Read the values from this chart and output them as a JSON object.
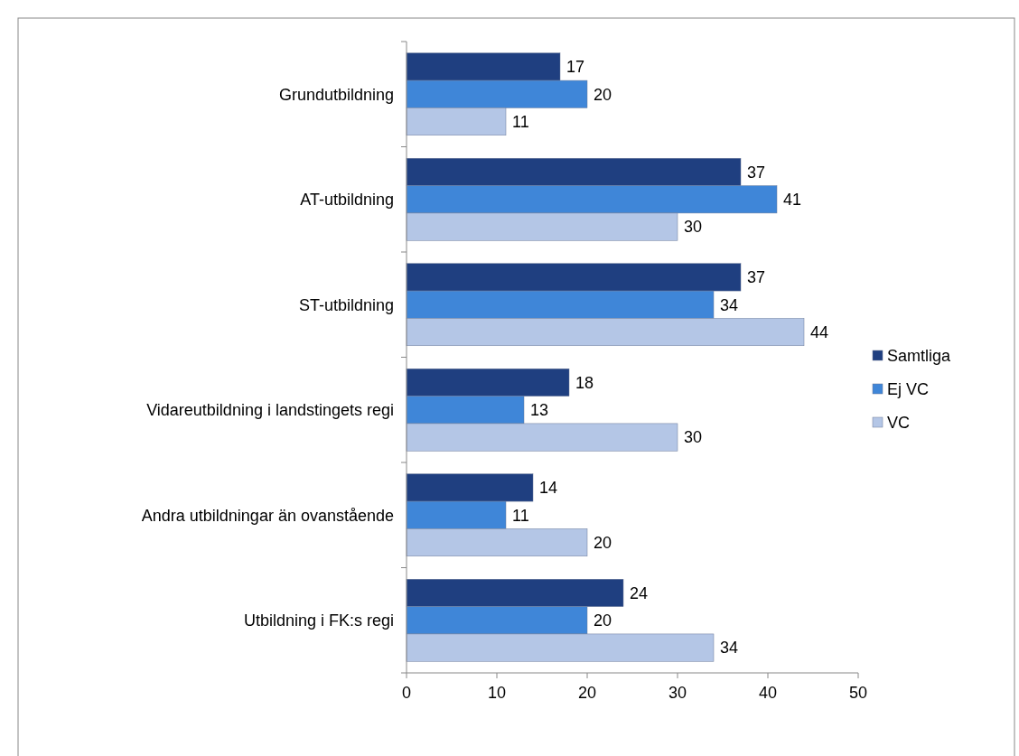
{
  "chart_data": {
    "type": "bar",
    "orientation": "horizontal",
    "categories": [
      "Grundutbildning",
      "AT-utbildning",
      "ST-utbildning",
      "Vidareutbildning i landstingets regi",
      "Andra utbildningar än ovanstående",
      "Utbildning i FK:s regi"
    ],
    "series": [
      {
        "name": "Samtliga",
        "color": "#1f3f80",
        "values": [
          17,
          37,
          37,
          18,
          14,
          24
        ]
      },
      {
        "name": "Ej VC",
        "color": "#3f86d8",
        "values": [
          20,
          41,
          34,
          13,
          11,
          20
        ]
      },
      {
        "name": "VC",
        "color": "#b4c6e6",
        "values": [
          11,
          30,
          44,
          30,
          20,
          34
        ]
      }
    ],
    "xlim": [
      0,
      50
    ],
    "xticks": [
      0,
      10,
      20,
      30,
      40,
      50
    ],
    "data_labels": true,
    "grid": false,
    "legend": "right"
  }
}
